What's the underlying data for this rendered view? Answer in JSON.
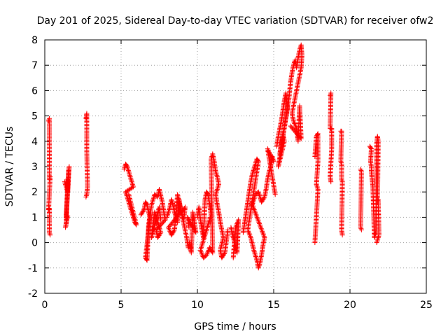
{
  "chart_data": {
    "type": "scatter",
    "title": "Day 201 of 2025, Sidereal Day-to-day VTEC variation (SDTVAR) for receiver ofw2",
    "xlabel": "GPS time / hours",
    "ylabel": "SDTVAR / TECUs",
    "xlim": [
      0,
      25
    ],
    "ylim": [
      -2,
      8
    ],
    "xticks": [
      0,
      5,
      10,
      15,
      20,
      25
    ],
    "yticks": [
      -2,
      -1,
      0,
      1,
      2,
      3,
      4,
      5,
      6,
      7,
      8
    ],
    "grid": true,
    "legend": "none",
    "marker": "plus",
    "color": "#ff0000",
    "series": [
      {
        "segments": [
          [
            [
              0.25,
              4.8
            ],
            [
              0.3,
              4.9
            ],
            [
              0.3,
              2.5
            ],
            [
              0.35,
              2.6
            ],
            [
              0.25,
              1.3
            ],
            [
              0.3,
              1.35
            ],
            [
              0.3,
              0.4
            ],
            [
              0.35,
              0.3
            ]
          ],
          [
            [
              1.3,
              2.4
            ],
            [
              1.4,
              2.2
            ],
            [
              1.5,
              2.0
            ],
            [
              1.55,
              2.8
            ],
            [
              1.6,
              3.0
            ],
            [
              1.4,
              1.0
            ],
            [
              1.5,
              1.05
            ],
            [
              1.35,
              0.6
            ],
            [
              1.4,
              0.7
            ],
            [
              1.5,
              2.5
            ]
          ],
          [
            [
              2.7,
              4.9
            ],
            [
              2.75,
              5.1
            ],
            [
              2.75,
              3.6
            ],
            [
              2.8,
              2.2
            ],
            [
              2.75,
              1.9
            ],
            [
              2.7,
              1.8
            ]
          ],
          [
            [
              5.2,
              2.9
            ],
            [
              5.3,
              3.1
            ],
            [
              5.4,
              3.0
            ],
            [
              5.5,
              2.8
            ],
            [
              5.6,
              2.6
            ],
            [
              5.7,
              2.4
            ],
            [
              5.8,
              2.2
            ],
            [
              5.3,
              2.0
            ],
            [
              5.4,
              1.8
            ],
            [
              5.5,
              1.6
            ],
            [
              5.6,
              1.4
            ],
            [
              5.7,
              1.2
            ],
            [
              5.8,
              1.0
            ],
            [
              5.9,
              0.8
            ],
            [
              6.0,
              0.7
            ],
            [
              5.5,
              1.9
            ]
          ],
          [
            [
              6.3,
              1.1
            ],
            [
              6.5,
              1.3
            ],
            [
              6.6,
              1.6
            ],
            [
              6.7,
              1.5
            ],
            [
              6.8,
              1.2
            ],
            [
              6.9,
              1.0
            ],
            [
              6.6,
              -0.6
            ],
            [
              6.7,
              -0.7
            ],
            [
              6.8,
              0.7
            ],
            [
              7.0,
              1.5
            ],
            [
              7.2,
              1.9
            ],
            [
              7.4,
              1.8
            ],
            [
              7.5,
              2.1
            ],
            [
              7.7,
              1.6
            ],
            [
              7.8,
              1.2
            ],
            [
              7.9,
              0.9
            ],
            [
              7.3,
              0.5
            ],
            [
              7.4,
              0.2
            ],
            [
              7.6,
              0.4
            ],
            [
              7.2,
              1.2
            ],
            [
              7.1,
              0.8
            ],
            [
              7.0,
              0.2
            ],
            [
              7.5,
              1.4
            ],
            [
              7.6,
              0.9
            ]
          ],
          [
            [
              8.0,
              1.0
            ],
            [
              8.2,
              1.4
            ],
            [
              8.3,
              1.7
            ],
            [
              8.4,
              1.5
            ],
            [
              8.5,
              1.2
            ],
            [
              8.6,
              1.0
            ],
            [
              8.7,
              0.8
            ],
            [
              8.8,
              1.7
            ],
            [
              8.9,
              1.3
            ],
            [
              9.0,
              1.1
            ],
            [
              9.1,
              0.9
            ],
            [
              9.2,
              1.4
            ],
            [
              8.1,
              0.6
            ],
            [
              8.3,
              0.3
            ],
            [
              8.5,
              0.5
            ],
            [
              8.7,
              1.9
            ],
            [
              9.3,
              0.2
            ],
            [
              9.4,
              -0.2
            ],
            [
              9.5,
              0.0
            ],
            [
              9.6,
              -0.4
            ],
            [
              9.7,
              1.2
            ],
            [
              9.8,
              0.8
            ],
            [
              9.9,
              0.4
            ],
            [
              9.35,
              1.0
            ],
            [
              9.45,
              0.6
            ]
          ],
          [
            [
              10.0,
              1.0
            ],
            [
              10.1,
              1.4
            ],
            [
              10.2,
              0.9
            ],
            [
              10.3,
              0.5
            ],
            [
              10.4,
              0.2
            ],
            [
              10.5,
              1.7
            ],
            [
              10.6,
              2.0
            ],
            [
              10.7,
              1.9
            ],
            [
              10.8,
              1.5
            ],
            [
              10.9,
              1.1
            ],
            [
              10.2,
              -0.3
            ],
            [
              10.4,
              -0.6
            ],
            [
              10.6,
              -0.5
            ],
            [
              10.8,
              -0.2
            ],
            [
              11.0,
              -0.4
            ],
            [
              10.9,
              3.3
            ],
            [
              11.0,
              3.5
            ],
            [
              11.1,
              3.2
            ],
            [
              11.2,
              2.8
            ],
            [
              11.3,
              2.6
            ],
            [
              11.4,
              2.3
            ],
            [
              11.2,
              1.9
            ],
            [
              11.3,
              1.5
            ],
            [
              11.4,
              1.2
            ],
            [
              11.5,
              0.8
            ],
            [
              11.6,
              0.5
            ],
            [
              11.7,
              0.2
            ],
            [
              11.5,
              -0.3
            ],
            [
              11.6,
              -0.6
            ],
            [
              11.8,
              -0.4
            ],
            [
              12.0,
              0.5
            ]
          ],
          [
            [
              12.2,
              0.6
            ],
            [
              12.3,
              0.3
            ],
            [
              12.4,
              0.1
            ],
            [
              12.5,
              -0.2
            ],
            [
              12.6,
              -0.4
            ],
            [
              12.7,
              0.9
            ],
            [
              12.5,
              0.6
            ],
            [
              12.35,
              -0.6
            ]
          ],
          [
            [
              13.0,
              0.4
            ],
            [
              13.1,
              0.8
            ],
            [
              13.2,
              1.2
            ],
            [
              13.3,
              1.6
            ],
            [
              13.4,
              2.0
            ],
            [
              13.5,
              2.4
            ],
            [
              13.6,
              2.7
            ],
            [
              13.7,
              2.9
            ],
            [
              13.8,
              3.1
            ],
            [
              13.9,
              3.3
            ],
            [
              14.0,
              3.2
            ],
            [
              13.3,
              0.5
            ],
            [
              13.5,
              0.2
            ],
            [
              13.7,
              -0.3
            ],
            [
              13.9,
              -0.7
            ],
            [
              14.0,
              -1.0
            ],
            [
              14.1,
              -0.8
            ],
            [
              14.2,
              -0.5
            ],
            [
              14.3,
              -0.1
            ],
            [
              14.4,
              0.2
            ],
            [
              13.6,
              1.5
            ],
            [
              13.8,
              1.9
            ],
            [
              14.0,
              2.0
            ],
            [
              14.2,
              1.6
            ],
            [
              14.4,
              1.8
            ],
            [
              14.5,
              2.1
            ],
            [
              14.6,
              2.5
            ],
            [
              14.7,
              2.8
            ],
            [
              14.8,
              3.0
            ],
            [
              14.9,
              3.4
            ],
            [
              15.0,
              3.2
            ],
            [
              14.6,
              3.7
            ],
            [
              15.1,
              1.9
            ]
          ],
          [
            [
              15.2,
              3.8
            ],
            [
              15.3,
              4.2
            ],
            [
              15.4,
              4.5
            ],
            [
              15.5,
              4.8
            ],
            [
              15.6,
              5.2
            ],
            [
              15.7,
              5.6
            ],
            [
              15.8,
              5.9
            ],
            [
              15.9,
              5.3
            ],
            [
              15.4,
              3.5
            ],
            [
              15.5,
              3.9
            ],
            [
              15.6,
              4.3
            ],
            [
              15.7,
              4.0
            ],
            [
              15.3,
              3.0
            ],
            [
              16.0,
              5.7
            ],
            [
              16.1,
              6.3
            ],
            [
              16.2,
              6.7
            ],
            [
              16.3,
              7.0
            ],
            [
              16.4,
              7.2
            ],
            [
              16.5,
              6.9
            ],
            [
              16.6,
              7.3
            ],
            [
              16.7,
              7.6
            ],
            [
              16.8,
              7.8
            ],
            [
              16.85,
              7.4
            ],
            [
              16.8,
              6.9
            ],
            [
              16.2,
              5.1
            ],
            [
              16.3,
              4.8
            ],
            [
              16.5,
              4.5
            ],
            [
              16.6,
              4.0
            ],
            [
              16.7,
              5.4
            ],
            [
              16.8,
              4.1
            ],
            [
              16.1,
              4.6
            ]
          ],
          [
            [
              17.7,
              3.4
            ],
            [
              17.8,
              4.2
            ],
            [
              17.9,
              4.3
            ],
            [
              17.9,
              3.2
            ],
            [
              17.8,
              2.3
            ],
            [
              17.9,
              2.1
            ],
            [
              17.7,
              0.0
            ]
          ],
          [
            [
              18.7,
              5.8
            ],
            [
              18.75,
              5.9
            ],
            [
              18.7,
              4.5
            ],
            [
              18.8,
              4.5
            ],
            [
              18.8,
              3.7
            ],
            [
              18.7,
              2.6
            ],
            [
              18.75,
              2.4
            ]
          ],
          [
            [
              19.4,
              4.4
            ],
            [
              19.45,
              4.4
            ],
            [
              19.4,
              3.2
            ],
            [
              19.45,
              3.1
            ],
            [
              19.45,
              2.5
            ],
            [
              19.5,
              2.4
            ],
            [
              19.45,
              0.5
            ],
            [
              19.5,
              0.3
            ]
          ],
          [
            [
              20.7,
              2.9
            ],
            [
              20.75,
              2.8
            ],
            [
              20.7,
              0.6
            ],
            [
              20.75,
              0.5
            ]
          ],
          [
            [
              21.3,
              3.8
            ],
            [
              21.4,
              3.7
            ],
            [
              21.35,
              3.2
            ],
            [
              21.4,
              3.0
            ],
            [
              21.4,
              2.8
            ],
            [
              21.45,
              2.5
            ],
            [
              21.5,
              2.2
            ],
            [
              21.6,
              0.2
            ],
            [
              21.7,
              0.4
            ],
            [
              21.75,
              3.9
            ],
            [
              21.8,
              4.2
            ],
            [
              21.85,
              4.0
            ],
            [
              21.8,
              1.6
            ],
            [
              21.85,
              1.7
            ],
            [
              21.9,
              0.3
            ],
            [
              21.75,
              0.0
            ]
          ]
        ]
      }
    ]
  }
}
